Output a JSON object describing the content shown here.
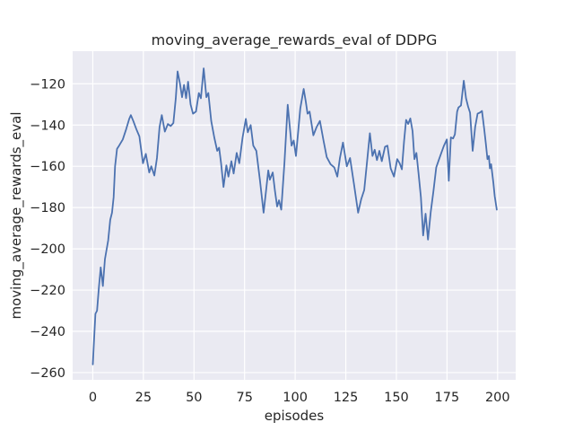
{
  "figure": {
    "background": "#ffffff"
  },
  "chart_data": {
    "type": "line",
    "title": "moving_average_rewards_eval of DDPG",
    "xlabel": "episodes",
    "ylabel": "moving_average_rewards_eval",
    "xlim": [
      -9.95,
      208.95
    ],
    "ylim": [
      -263.5,
      -104.2
    ],
    "xticks": [
      0,
      25,
      50,
      75,
      100,
      125,
      150,
      175,
      200
    ],
    "xtick_labels": [
      "0",
      "25",
      "50",
      "75",
      "100",
      "125",
      "150",
      "175",
      "200"
    ],
    "yticks": [
      -260,
      -240,
      -220,
      -200,
      -180,
      -160,
      -140,
      -120
    ],
    "ytick_labels": [
      "−260",
      "−240",
      "−220",
      "−200",
      "−180",
      "−160",
      "−140",
      "−120"
    ],
    "grid": true,
    "legend": "none",
    "plot_bg": "#EAEAF2",
    "grid_color": "#FFFFFF",
    "text_color": "#262626",
    "line_color": "#4C72B0",
    "series": [
      {
        "name": "moving_average_rewards_eval",
        "points": [
          [
            0,
            -256
          ],
          [
            0.7,
            -243
          ],
          [
            1.3,
            -231.5
          ],
          [
            2.1,
            -230
          ],
          [
            3,
            -219
          ],
          [
            3.9,
            -209
          ],
          [
            5,
            -218
          ],
          [
            6,
            -205
          ],
          [
            7.6,
            -196
          ],
          [
            8.6,
            -186
          ],
          [
            9.5,
            -182.5
          ],
          [
            10.3,
            -175
          ],
          [
            11,
            -160
          ],
          [
            12,
            -151.5
          ],
          [
            13,
            -150
          ],
          [
            14.8,
            -147
          ],
          [
            16.5,
            -142
          ],
          [
            18,
            -137
          ],
          [
            18.8,
            -135.2
          ],
          [
            20,
            -138
          ],
          [
            21.5,
            -142
          ],
          [
            23,
            -145.5
          ],
          [
            24.8,
            -158.5
          ],
          [
            26.2,
            -154
          ],
          [
            27.9,
            -163
          ],
          [
            28.9,
            -160
          ],
          [
            30.4,
            -164.5
          ],
          [
            31.7,
            -156
          ],
          [
            33,
            -141
          ],
          [
            34.1,
            -135.2
          ],
          [
            35.6,
            -143.2
          ],
          [
            37.1,
            -139.5
          ],
          [
            38.5,
            -140.5
          ],
          [
            39.8,
            -139
          ],
          [
            41,
            -127
          ],
          [
            41.9,
            -114
          ],
          [
            43,
            -119.5
          ],
          [
            44.1,
            -126.5
          ],
          [
            45.1,
            -120.5
          ],
          [
            46.1,
            -127
          ],
          [
            47.1,
            -119
          ],
          [
            48.3,
            -130
          ],
          [
            49.5,
            -134.5
          ],
          [
            51,
            -133.5
          ],
          [
            52.4,
            -124.5
          ],
          [
            53.4,
            -127
          ],
          [
            54.8,
            -112.5
          ],
          [
            56.1,
            -126.5
          ],
          [
            57.1,
            -124.5
          ],
          [
            58.5,
            -138
          ],
          [
            60,
            -146
          ],
          [
            61.5,
            -152.5
          ],
          [
            62.4,
            -151
          ],
          [
            63.4,
            -158.5
          ],
          [
            64.6,
            -170
          ],
          [
            66,
            -159.5
          ],
          [
            67,
            -165
          ],
          [
            68.5,
            -157.5
          ],
          [
            69.6,
            -163.5
          ],
          [
            71.1,
            -153.5
          ],
          [
            72.4,
            -158.5
          ],
          [
            74,
            -146
          ],
          [
            75.6,
            -137
          ],
          [
            76.6,
            -143.5
          ],
          [
            78,
            -140
          ],
          [
            79.3,
            -150
          ],
          [
            80.8,
            -152.5
          ],
          [
            82.6,
            -167
          ],
          [
            84.4,
            -182.5
          ],
          [
            85.6,
            -172
          ],
          [
            86.7,
            -162
          ],
          [
            87.5,
            -166.5
          ],
          [
            88.9,
            -163
          ],
          [
            90,
            -172
          ],
          [
            91.1,
            -179.5
          ],
          [
            92,
            -176.5
          ],
          [
            93.1,
            -181
          ],
          [
            94.7,
            -158
          ],
          [
            96.3,
            -130.2
          ],
          [
            98.2,
            -150
          ],
          [
            99.3,
            -147.5
          ],
          [
            100.4,
            -155
          ],
          [
            102.5,
            -132
          ],
          [
            104.2,
            -122.5
          ],
          [
            105.2,
            -128.5
          ],
          [
            106.1,
            -134.5
          ],
          [
            107.1,
            -133.5
          ],
          [
            109,
            -145
          ],
          [
            110.6,
            -141
          ],
          [
            112.2,
            -138
          ],
          [
            114,
            -147.5
          ],
          [
            115.6,
            -155.5
          ],
          [
            117.5,
            -159
          ],
          [
            119.3,
            -160.5
          ],
          [
            120.8,
            -165
          ],
          [
            122.1,
            -156
          ],
          [
            123.6,
            -148.5
          ],
          [
            125.5,
            -160
          ],
          [
            127.1,
            -156
          ],
          [
            129.1,
            -169
          ],
          [
            131.1,
            -182.5
          ],
          [
            132.6,
            -176
          ],
          [
            134.1,
            -171.5
          ],
          [
            135.5,
            -158
          ],
          [
            136.9,
            -144
          ],
          [
            138.2,
            -155
          ],
          [
            139.3,
            -152
          ],
          [
            140.4,
            -157
          ],
          [
            141.6,
            -152.5
          ],
          [
            142.8,
            -157.5
          ],
          [
            144.4,
            -150.5
          ],
          [
            145.6,
            -150
          ],
          [
            147.2,
            -161
          ],
          [
            148.8,
            -165
          ],
          [
            150.4,
            -156.5
          ],
          [
            151.6,
            -158.5
          ],
          [
            152.7,
            -161.5
          ],
          [
            153.8,
            -148
          ],
          [
            154.8,
            -137.5
          ],
          [
            155.8,
            -139.5
          ],
          [
            156.9,
            -136.8
          ],
          [
            158,
            -143
          ],
          [
            158.9,
            -156.5
          ],
          [
            159.9,
            -153.5
          ],
          [
            161,
            -164
          ],
          [
            162.1,
            -175
          ],
          [
            163.2,
            -193.5
          ],
          [
            164.4,
            -183
          ],
          [
            165.6,
            -195.5
          ],
          [
            167,
            -182
          ],
          [
            168.3,
            -172
          ],
          [
            169.7,
            -160.5
          ],
          [
            171.1,
            -156.5
          ],
          [
            172.4,
            -153
          ],
          [
            173.5,
            -150
          ],
          [
            174.9,
            -147
          ],
          [
            175.9,
            -167
          ],
          [
            176.9,
            -146
          ],
          [
            178,
            -146.5
          ],
          [
            178.9,
            -144.5
          ],
          [
            180,
            -133.5
          ],
          [
            180.7,
            -131.5
          ],
          [
            181.9,
            -130.5
          ],
          [
            183.3,
            -118.5
          ],
          [
            184.4,
            -127
          ],
          [
            185.4,
            -131
          ],
          [
            186.4,
            -134
          ],
          [
            187.7,
            -152.5
          ],
          [
            188.9,
            -141
          ],
          [
            190.1,
            -134.5
          ],
          [
            191.2,
            -134
          ],
          [
            192.3,
            -133.2
          ],
          [
            193.4,
            -142
          ],
          [
            194.2,
            -149
          ],
          [
            195,
            -156.5
          ],
          [
            195.7,
            -155
          ],
          [
            196.2,
            -161
          ],
          [
            196.8,
            -159
          ],
          [
            197.9,
            -168
          ],
          [
            198.6,
            -174.5
          ],
          [
            199.6,
            -181
          ]
        ]
      }
    ]
  }
}
